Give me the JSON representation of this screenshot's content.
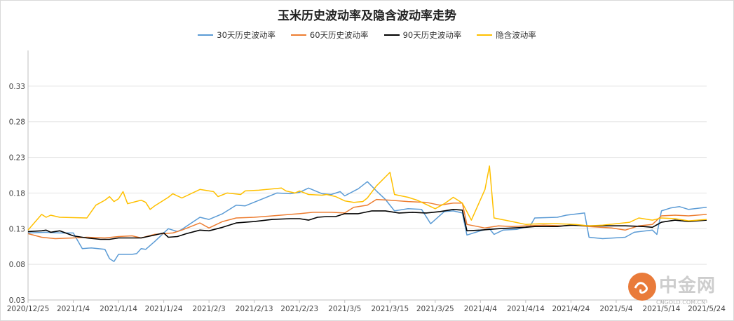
{
  "chart_data": {
    "type": "line",
    "title": "玉米历史波动率及隐含波动率走势",
    "ylim": [
      0.03,
      0.38
    ],
    "y_ticks": [
      0.03,
      0.08,
      0.13,
      0.18,
      0.23,
      0.28,
      0.33
    ],
    "y_tick_labels": [
      "0.03",
      "0.08",
      "0.13",
      "0.18",
      "0.23",
      "0.28",
      "0.33"
    ],
    "x_range": [
      "2020-12-25",
      "2021-05-24"
    ],
    "x_ticks": [
      "2020-12-25",
      "2021-01-04",
      "2021-01-14",
      "2021-01-24",
      "2021-02-03",
      "2021-02-13",
      "2021-02-23",
      "2021-03-05",
      "2021-03-15",
      "2021-03-25",
      "2021-04-04",
      "2021-04-14",
      "2021-04-24",
      "2021-05-04",
      "2021-05-14",
      "2021-05-24"
    ],
    "x_tick_labels": [
      "2020/12/25",
      "2021/1/4",
      "2021/1/14",
      "2021/1/24",
      "2021/2/3",
      "2021/2/13",
      "2021/2/23",
      "2021/3/5",
      "2021/3/15",
      "2021/3/25",
      "2021/4/4",
      "2021/4/14",
      "2021/4/24",
      "2021/5/4",
      "2021/5/14",
      "2021/5/24"
    ],
    "grid": "horizontal",
    "legend_position": "top",
    "series": [
      {
        "name": "30天历史波动率",
        "color": "#5b9bd5",
        "points": [
          [
            "2020-12-25",
            0.124
          ],
          [
            "2020-12-29",
            0.125
          ],
          [
            "2021-01-01",
            0.124
          ],
          [
            "2021-01-04",
            0.124
          ],
          [
            "2021-01-06",
            0.102
          ],
          [
            "2021-01-08",
            0.103
          ],
          [
            "2021-01-11",
            0.101
          ],
          [
            "2021-01-12",
            0.088
          ],
          [
            "2021-01-13",
            0.084
          ],
          [
            "2021-01-14",
            0.094
          ],
          [
            "2021-01-17",
            0.094
          ],
          [
            "2021-01-18",
            0.095
          ],
          [
            "2021-01-19",
            0.102
          ],
          [
            "2021-01-20",
            0.101
          ],
          [
            "2021-01-22",
            0.112
          ],
          [
            "2021-01-24",
            0.124
          ],
          [
            "2021-01-25",
            0.13
          ],
          [
            "2021-01-27",
            0.126
          ],
          [
            "2021-01-28",
            0.129
          ],
          [
            "2021-02-01",
            0.146
          ],
          [
            "2021-02-03",
            0.143
          ],
          [
            "2021-02-06",
            0.151
          ],
          [
            "2021-02-09",
            0.163
          ],
          [
            "2021-02-11",
            0.162
          ],
          [
            "2021-02-18",
            0.18
          ],
          [
            "2021-02-21",
            0.179
          ],
          [
            "2021-02-23",
            0.181
          ],
          [
            "2021-02-25",
            0.187
          ],
          [
            "2021-02-28",
            0.179
          ],
          [
            "2021-03-02",
            0.178
          ],
          [
            "2021-03-04",
            0.182
          ],
          [
            "2021-03-05",
            0.176
          ],
          [
            "2021-03-08",
            0.186
          ],
          [
            "2021-03-10",
            0.196
          ],
          [
            "2021-03-12",
            0.183
          ],
          [
            "2021-03-14",
            0.171
          ],
          [
            "2021-03-16",
            0.155
          ],
          [
            "2021-03-19",
            0.158
          ],
          [
            "2021-03-22",
            0.157
          ],
          [
            "2021-03-24",
            0.137
          ],
          [
            "2021-03-27",
            0.154
          ],
          [
            "2021-03-29",
            0.155
          ],
          [
            "2021-03-31",
            0.152
          ],
          [
            "2021-04-01",
            0.121
          ],
          [
            "2021-04-04",
            0.127
          ],
          [
            "2021-04-06",
            0.13
          ],
          [
            "2021-04-07",
            0.122
          ],
          [
            "2021-04-09",
            0.128
          ],
          [
            "2021-04-12",
            0.129
          ],
          [
            "2021-04-15",
            0.134
          ],
          [
            "2021-04-16",
            0.145
          ],
          [
            "2021-04-21",
            0.146
          ],
          [
            "2021-04-23",
            0.149
          ],
          [
            "2021-04-27",
            0.152
          ],
          [
            "2021-04-28",
            0.118
          ],
          [
            "2021-05-01",
            0.116
          ],
          [
            "2021-05-06",
            0.118
          ],
          [
            "2021-05-08",
            0.125
          ],
          [
            "2021-05-12",
            0.128
          ],
          [
            "2021-05-13",
            0.122
          ],
          [
            "2021-05-14",
            0.155
          ],
          [
            "2021-05-16",
            0.159
          ],
          [
            "2021-05-18",
            0.161
          ],
          [
            "2021-05-20",
            0.157
          ],
          [
            "2021-05-24",
            0.16
          ]
        ]
      },
      {
        "name": "60天历史波动率",
        "color": "#ed7d31",
        "points": [
          [
            "2020-12-25",
            0.123
          ],
          [
            "2020-12-28",
            0.118
          ],
          [
            "2020-12-31",
            0.116
          ],
          [
            "2021-01-04",
            0.117
          ],
          [
            "2021-01-07",
            0.118
          ],
          [
            "2021-01-11",
            0.117
          ],
          [
            "2021-01-14",
            0.119
          ],
          [
            "2021-01-17",
            0.12
          ],
          [
            "2021-01-19",
            0.117
          ],
          [
            "2021-01-22",
            0.122
          ],
          [
            "2021-01-24",
            0.123
          ],
          [
            "2021-01-26",
            0.124
          ],
          [
            "2021-01-28",
            0.128
          ],
          [
            "2021-02-01",
            0.138
          ],
          [
            "2021-02-03",
            0.131
          ],
          [
            "2021-02-06",
            0.14
          ],
          [
            "2021-02-09",
            0.145
          ],
          [
            "2021-02-13",
            0.146
          ],
          [
            "2021-02-17",
            0.148
          ],
          [
            "2021-02-21",
            0.15
          ],
          [
            "2021-02-23",
            0.151
          ],
          [
            "2021-02-26",
            0.153
          ],
          [
            "2021-03-02",
            0.153
          ],
          [
            "2021-03-05",
            0.152
          ],
          [
            "2021-03-07",
            0.16
          ],
          [
            "2021-03-10",
            0.163
          ],
          [
            "2021-03-12",
            0.171
          ],
          [
            "2021-03-15",
            0.17
          ],
          [
            "2021-03-19",
            0.168
          ],
          [
            "2021-03-23",
            0.167
          ],
          [
            "2021-03-26",
            0.163
          ],
          [
            "2021-03-29",
            0.166
          ],
          [
            "2021-03-31",
            0.166
          ],
          [
            "2021-04-01",
            0.136
          ],
          [
            "2021-04-05",
            0.131
          ],
          [
            "2021-04-08",
            0.134
          ],
          [
            "2021-04-11",
            0.133
          ],
          [
            "2021-04-14",
            0.134
          ],
          [
            "2021-04-18",
            0.135
          ],
          [
            "2021-04-22",
            0.134
          ],
          [
            "2021-04-25",
            0.135
          ],
          [
            "2021-04-28",
            0.133
          ],
          [
            "2021-05-03",
            0.131
          ],
          [
            "2021-05-06",
            0.128
          ],
          [
            "2021-05-09",
            0.134
          ],
          [
            "2021-05-12",
            0.136
          ],
          [
            "2021-05-14",
            0.148
          ],
          [
            "2021-05-17",
            0.149
          ],
          [
            "2021-05-20",
            0.148
          ],
          [
            "2021-05-24",
            0.15
          ]
        ]
      },
      {
        "name": "90天历史波动率",
        "color": "#000000",
        "points": [
          [
            "2020-12-25",
            0.126
          ],
          [
            "2020-12-28",
            0.127
          ],
          [
            "2020-12-29",
            0.128
          ],
          [
            "2020-12-30",
            0.125
          ],
          [
            "2021-01-01",
            0.127
          ],
          [
            "2021-01-04",
            0.12
          ],
          [
            "2021-01-07",
            0.117
          ],
          [
            "2021-01-10",
            0.115
          ],
          [
            "2021-01-12",
            0.115
          ],
          [
            "2021-01-14",
            0.117
          ],
          [
            "2021-01-16",
            0.117
          ],
          [
            "2021-01-19",
            0.117
          ],
          [
            "2021-01-22",
            0.121
          ],
          [
            "2021-01-24",
            0.124
          ],
          [
            "2021-01-25",
            0.118
          ],
          [
            "2021-01-27",
            0.119
          ],
          [
            "2021-01-29",
            0.123
          ],
          [
            "2021-02-01",
            0.128
          ],
          [
            "2021-02-03",
            0.127
          ],
          [
            "2021-02-06",
            0.132
          ],
          [
            "2021-02-09",
            0.138
          ],
          [
            "2021-02-13",
            0.14
          ],
          [
            "2021-02-17",
            0.143
          ],
          [
            "2021-02-21",
            0.144
          ],
          [
            "2021-02-23",
            0.144
          ],
          [
            "2021-02-25",
            0.142
          ],
          [
            "2021-02-27",
            0.146
          ],
          [
            "2021-03-01",
            0.147
          ],
          [
            "2021-03-03",
            0.147
          ],
          [
            "2021-03-05",
            0.151
          ],
          [
            "2021-03-08",
            0.151
          ],
          [
            "2021-03-11",
            0.155
          ],
          [
            "2021-03-14",
            0.155
          ],
          [
            "2021-03-17",
            0.152
          ],
          [
            "2021-03-20",
            0.153
          ],
          [
            "2021-03-23",
            0.152
          ],
          [
            "2021-03-26",
            0.154
          ],
          [
            "2021-03-29",
            0.157
          ],
          [
            "2021-03-31",
            0.156
          ],
          [
            "2021-04-01",
            0.127
          ],
          [
            "2021-04-04",
            0.128
          ],
          [
            "2021-04-08",
            0.13
          ],
          [
            "2021-04-11",
            0.131
          ],
          [
            "2021-04-14",
            0.132
          ],
          [
            "2021-04-16",
            0.133
          ],
          [
            "2021-04-21",
            0.133
          ],
          [
            "2021-04-24",
            0.135
          ],
          [
            "2021-04-28",
            0.134
          ],
          [
            "2021-05-02",
            0.134
          ],
          [
            "2021-05-06",
            0.134
          ],
          [
            "2021-05-10",
            0.133
          ],
          [
            "2021-05-12",
            0.132
          ],
          [
            "2021-05-14",
            0.139
          ],
          [
            "2021-05-17",
            0.142
          ],
          [
            "2021-05-20",
            0.14
          ],
          [
            "2021-05-24",
            0.142
          ]
        ]
      },
      {
        "name": "隐含波动率",
        "color": "#ffc000",
        "points": [
          [
            "2020-12-25",
            0.128
          ],
          [
            "2020-12-28",
            0.15
          ],
          [
            "2020-12-29",
            0.146
          ],
          [
            "2020-12-30",
            0.149
          ],
          [
            "2021-01-01",
            0.146
          ],
          [
            "2021-01-07",
            0.145
          ],
          [
            "2021-01-09",
            0.163
          ],
          [
            "2021-01-11",
            0.17
          ],
          [
            "2021-01-12",
            0.175
          ],
          [
            "2021-01-13",
            0.168
          ],
          [
            "2021-01-14",
            0.172
          ],
          [
            "2021-01-15",
            0.182
          ],
          [
            "2021-01-16",
            0.165
          ],
          [
            "2021-01-19",
            0.17
          ],
          [
            "2021-01-20",
            0.167
          ],
          [
            "2021-01-21",
            0.157
          ],
          [
            "2021-01-22",
            0.162
          ],
          [
            "2021-01-25",
            0.174
          ],
          [
            "2021-01-26",
            0.179
          ],
          [
            "2021-01-28",
            0.173
          ],
          [
            "2021-02-01",
            0.185
          ],
          [
            "2021-02-04",
            0.182
          ],
          [
            "2021-02-05",
            0.175
          ],
          [
            "2021-02-07",
            0.18
          ],
          [
            "2021-02-10",
            0.178
          ],
          [
            "2021-02-11",
            0.183
          ],
          [
            "2021-02-14",
            0.184
          ],
          [
            "2021-02-19",
            0.187
          ],
          [
            "2021-02-20",
            0.183
          ],
          [
            "2021-02-22",
            0.18
          ],
          [
            "2021-02-23",
            0.183
          ],
          [
            "2021-02-25",
            0.178
          ],
          [
            "2021-02-28",
            0.177
          ],
          [
            "2021-03-01",
            0.178
          ],
          [
            "2021-03-03",
            0.175
          ],
          [
            "2021-03-05",
            0.169
          ],
          [
            "2021-03-07",
            0.167
          ],
          [
            "2021-03-09",
            0.168
          ],
          [
            "2021-03-10",
            0.173
          ],
          [
            "2021-03-12",
            0.19
          ],
          [
            "2021-03-15",
            0.209
          ],
          [
            "2021-03-16",
            0.178
          ],
          [
            "2021-03-19",
            0.174
          ],
          [
            "2021-03-21",
            0.17
          ],
          [
            "2021-03-25",
            0.158
          ],
          [
            "2021-03-27",
            0.165
          ],
          [
            "2021-03-29",
            0.174
          ],
          [
            "2021-03-30",
            0.17
          ],
          [
            "2021-03-31",
            0.166
          ],
          [
            "2021-04-02",
            0.142
          ],
          [
            "2021-04-05",
            0.185
          ],
          [
            "2021-04-06",
            0.218
          ],
          [
            "2021-04-07",
            0.145
          ],
          [
            "2021-04-11",
            0.14
          ],
          [
            "2021-04-14",
            0.136
          ],
          [
            "2021-04-17",
            0.137
          ],
          [
            "2021-04-21",
            0.137
          ],
          [
            "2021-04-25",
            0.136
          ],
          [
            "2021-04-28",
            0.134
          ],
          [
            "2021-05-01",
            0.135
          ],
          [
            "2021-05-04",
            0.137
          ],
          [
            "2021-05-07",
            0.139
          ],
          [
            "2021-05-09",
            0.145
          ],
          [
            "2021-05-12",
            0.142
          ],
          [
            "2021-05-14",
            0.145
          ],
          [
            "2021-05-17",
            0.144
          ],
          [
            "2021-05-20",
            0.141
          ],
          [
            "2021-05-24",
            0.143
          ]
        ]
      }
    ]
  },
  "watermark": {
    "text": "中金网",
    "sub": "CNGOLD.COM.CN"
  }
}
